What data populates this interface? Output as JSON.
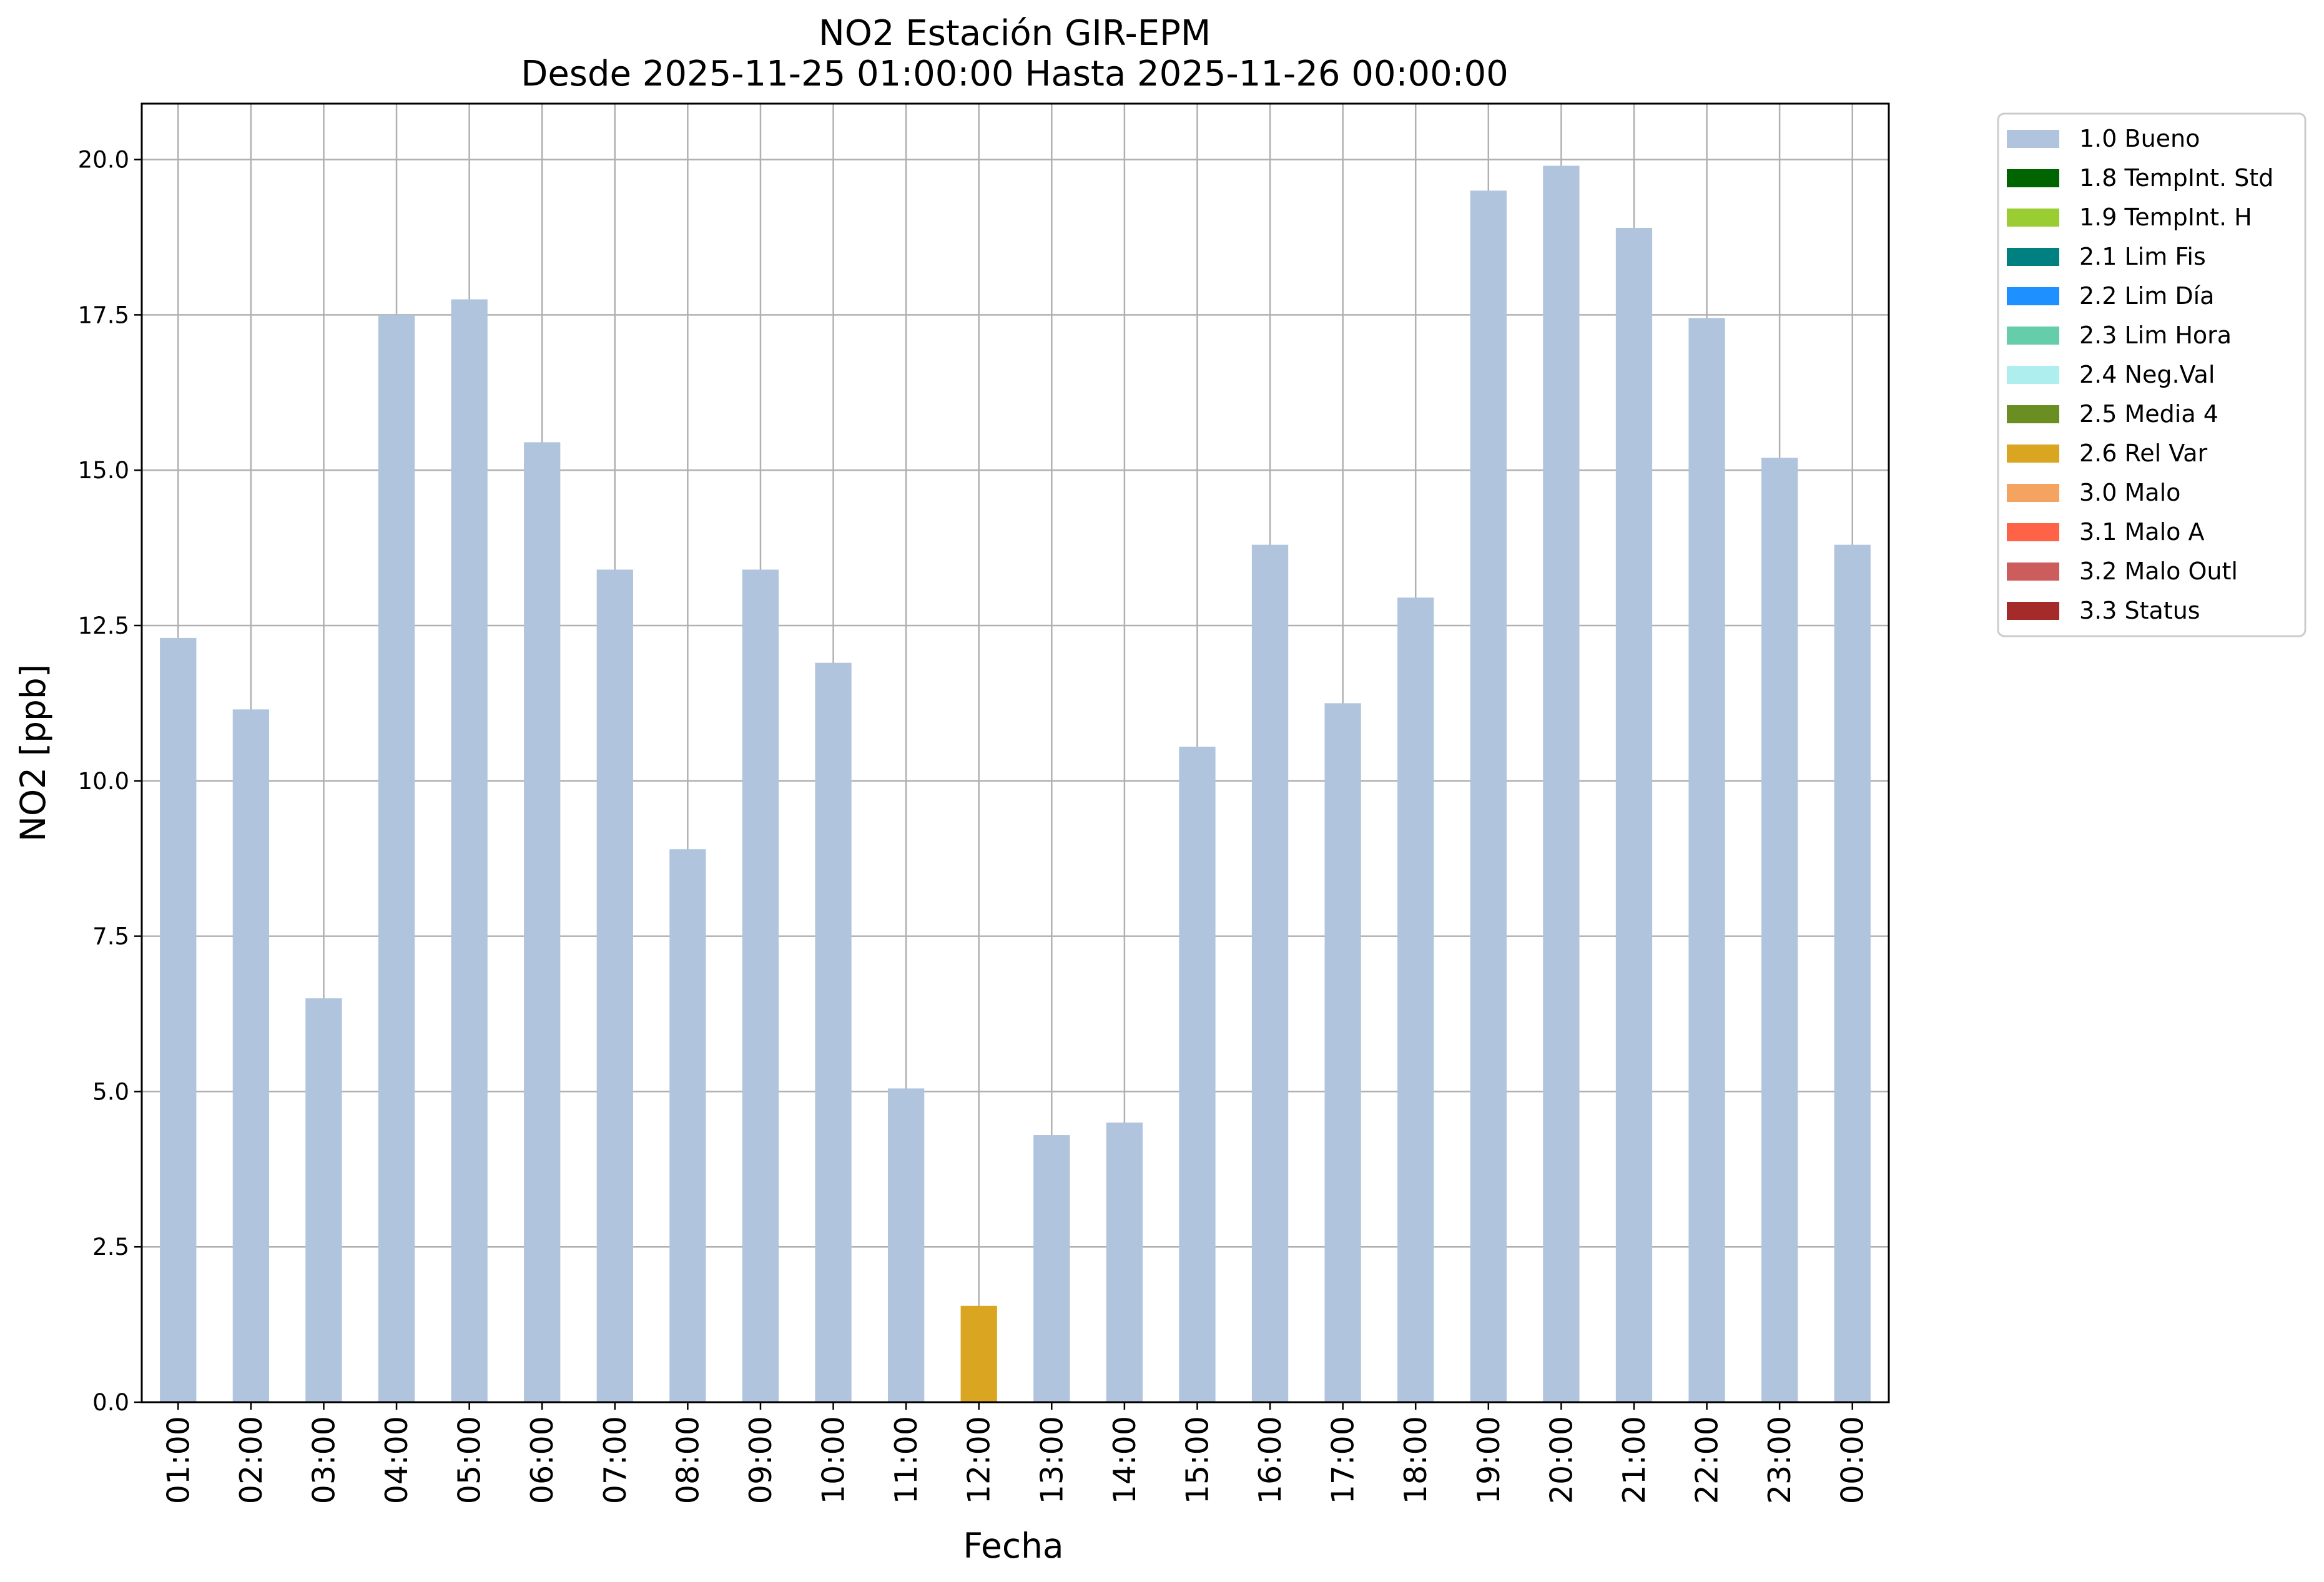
{
  "chart_data": {
    "type": "bar",
    "title": "NO2 Estación GIR-EPM",
    "subtitle": "Desde 2025-11-25 01:00:00 Hasta 2025-11-26 00:00:00",
    "xlabel": "Fecha",
    "ylabel": "NO2 [ppb]",
    "ylim": [
      0,
      20.9
    ],
    "yticks": [
      "0.0",
      "2.5",
      "5.0",
      "7.5",
      "10.0",
      "12.5",
      "15.0",
      "17.5",
      "20.0"
    ],
    "grid": true,
    "legend_position": "outside-right",
    "categories": [
      "01:00",
      "02:00",
      "03:00",
      "04:00",
      "05:00",
      "06:00",
      "07:00",
      "08:00",
      "09:00",
      "10:00",
      "11:00",
      "12:00",
      "13:00",
      "14:00",
      "15:00",
      "16:00",
      "17:00",
      "18:00",
      "19:00",
      "20:00",
      "21:00",
      "22:00",
      "23:00",
      "00:00"
    ],
    "values": [
      12.3,
      11.15,
      6.5,
      17.5,
      17.75,
      15.45,
      13.4,
      8.9,
      13.4,
      11.9,
      5.05,
      1.55,
      4.3,
      4.5,
      10.55,
      13.8,
      11.25,
      12.95,
      19.5,
      19.9,
      18.9,
      17.45,
      15.2,
      13.8
    ],
    "bar_status": [
      "1.0 Bueno",
      "1.0 Bueno",
      "1.0 Bueno",
      "1.0 Bueno",
      "1.0 Bueno",
      "1.0 Bueno",
      "1.0 Bueno",
      "1.0 Bueno",
      "1.0 Bueno",
      "1.0 Bueno",
      "1.0 Bueno",
      "2.6 Rel Var",
      "1.0 Bueno",
      "1.0 Bueno",
      "1.0 Bueno",
      "1.0 Bueno",
      "1.0 Bueno",
      "1.0 Bueno",
      "1.0 Bueno",
      "1.0 Bueno",
      "1.0 Bueno",
      "1.0 Bueno",
      "1.0 Bueno",
      "1.0 Bueno"
    ],
    "legend": [
      {
        "label": "1.0 Bueno",
        "color": "#b0c4de"
      },
      {
        "label": "1.8 TempInt. Std",
        "color": "#006400"
      },
      {
        "label": "1.9 TempInt. H",
        "color": "#9acd32"
      },
      {
        "label": "2.1 Lim Fis",
        "color": "#008080"
      },
      {
        "label": "2.2 Lim Día",
        "color": "#1e90ff"
      },
      {
        "label": "2.3 Lim Hora",
        "color": "#66cdaa"
      },
      {
        "label": "2.4 Neg.Val",
        "color": "#afeeee"
      },
      {
        "label": "2.5 Media 4",
        "color": "#6b8e23"
      },
      {
        "label": "2.6 Rel Var",
        "color": "#daa520"
      },
      {
        "label": "3.0 Malo",
        "color": "#f4a460"
      },
      {
        "label": "3.1 Malo A",
        "color": "#ff6347"
      },
      {
        "label": "3.2 Malo Outl",
        "color": "#cd5c5c"
      },
      {
        "label": "3.3 Status",
        "color": "#a52a2a"
      }
    ]
  }
}
